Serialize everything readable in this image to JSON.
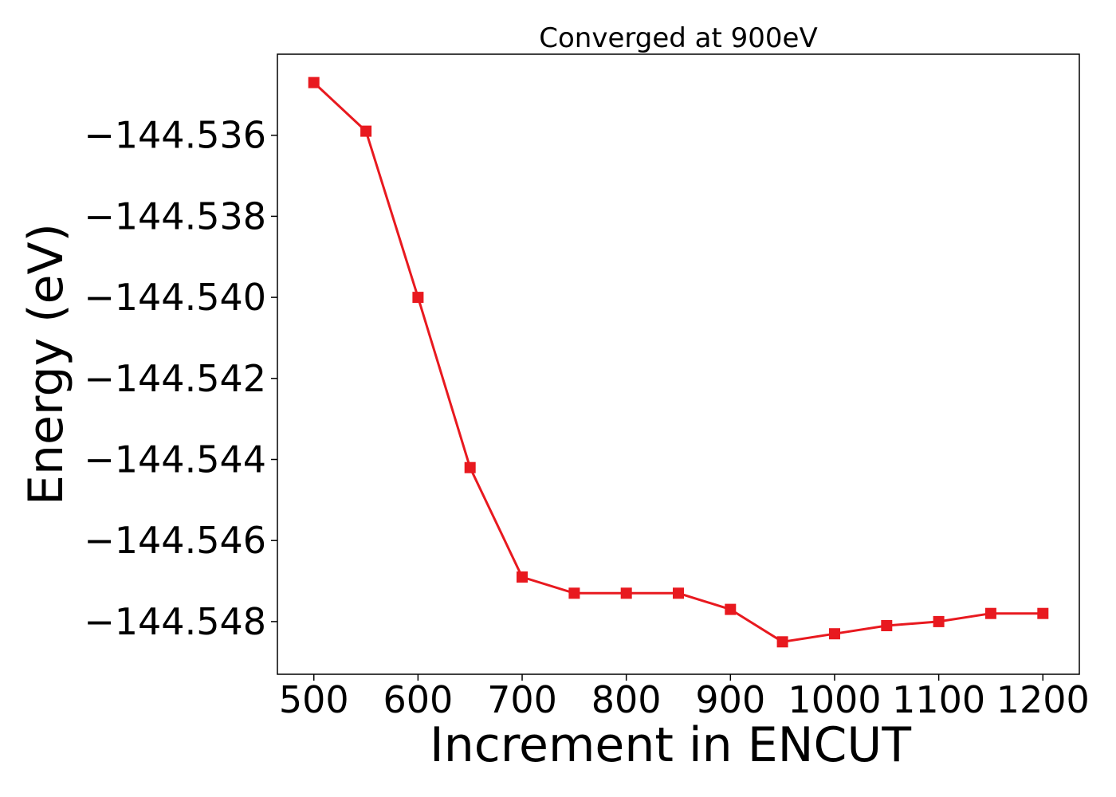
{
  "chart_data": {
    "type": "line",
    "title": "Converged at 900eV",
    "xlabel": "Increment in ENCUT",
    "ylabel": "Energy (eV)",
    "x": [
      500,
      550,
      600,
      650,
      700,
      750,
      800,
      850,
      900,
      950,
      1000,
      1050,
      1100,
      1150,
      1200
    ],
    "series": [
      {
        "values": [
          -144.5347,
          -144.5359,
          -144.54,
          -144.5442,
          -144.5469,
          -144.5473,
          -144.5473,
          -144.5473,
          -144.5477,
          -144.5485,
          -144.5483,
          -144.5481,
          -144.548,
          -144.5478,
          -144.5478
        ],
        "color": "#e8191f",
        "marker": "square"
      }
    ],
    "xlim": [
      465,
      1235
    ],
    "ylim": [
      -144.5493,
      -144.534
    ],
    "xticks": [
      500,
      600,
      700,
      800,
      900,
      1000,
      1100,
      1200
    ],
    "xtick_labels": [
      "500",
      "600",
      "700",
      "800",
      "900",
      "1000",
      "1100",
      "1200"
    ],
    "yticks": [
      -144.536,
      -144.538,
      -144.54,
      -144.542,
      -144.544,
      -144.546,
      -144.548
    ],
    "ytick_labels": [
      "−144.536",
      "−144.538",
      "−144.540",
      "−144.542",
      "−144.544",
      "−144.546",
      "−144.548"
    ],
    "grid": false,
    "legend": false
  }
}
